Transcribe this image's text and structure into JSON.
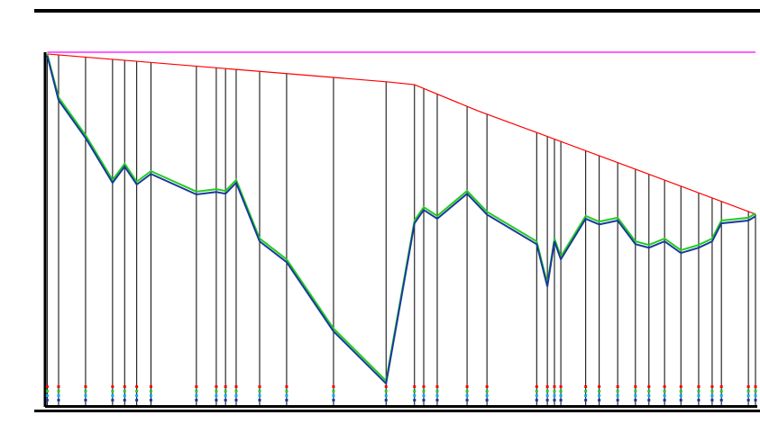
{
  "chart_data": {
    "type": "line",
    "xlim": [
      0,
      100
    ],
    "ylim": [
      0,
      100
    ],
    "series": [
      {
        "color": "#ff00ff",
        "x": [
          0.3,
          100
        ],
        "values": [
          100,
          100
        ]
      },
      {
        "color": "#ff0000",
        "x": [
          0.3,
          48.2,
          52.0,
          60.9,
          69.8,
          82.5,
          100
        ],
        "values": [
          99.5,
          91.6,
          90.8,
          83.4,
          76.8,
          67.3,
          54.1
        ]
      },
      {
        "color": "#22cc22",
        "x": [
          0.3,
          1.9,
          5.7,
          9.5,
          11.2,
          12.9,
          14.9,
          21.3,
          24.1,
          25.4,
          26.9,
          30.2,
          34.0,
          40.6,
          48.0,
          52.0,
          53.3,
          55.2,
          59.4,
          62.2,
          69.2,
          70.7,
          71.7,
          72.6,
          76.1,
          78.0,
          80.6,
          83.1,
          85.0,
          87.2,
          89.5,
          92.0,
          93.9,
          95.2,
          99.0,
          100
        ],
        "values": [
          99.5,
          87.2,
          76.5,
          63.8,
          68.4,
          63.3,
          66.3,
          60.5,
          61.2,
          60.7,
          63.8,
          47.2,
          41.3,
          21.7,
          6.9,
          52.3,
          56.1,
          53.6,
          60.7,
          54.8,
          46.4,
          34.4,
          47.2,
          42.1,
          53.6,
          52.0,
          53.1,
          46.4,
          45.4,
          47.2,
          43.9,
          45.4,
          47.2,
          52.3,
          53.1,
          54.3
        ]
      },
      {
        "color": "#1a3a9a",
        "x": [
          0.3,
          1.9,
          5.7,
          9.5,
          11.2,
          12.9,
          14.9,
          21.3,
          24.1,
          25.4,
          26.9,
          30.2,
          34.0,
          40.6,
          48.0,
          52.0,
          53.3,
          55.2,
          59.4,
          62.2,
          69.2,
          70.7,
          71.7,
          72.6,
          76.1,
          78.0,
          80.6,
          83.1,
          85.0,
          87.2,
          89.5,
          92.0,
          93.9,
          95.2,
          99.0,
          100
        ],
        "values": [
          99.0,
          86.4,
          75.7,
          63.0,
          67.6,
          62.5,
          65.5,
          59.7,
          60.4,
          59.9,
          63.0,
          46.4,
          40.5,
          20.9,
          6.1,
          51.5,
          55.3,
          52.8,
          59.9,
          54.0,
          45.6,
          33.6,
          46.4,
          41.3,
          52.8,
          51.2,
          52.3,
          45.6,
          44.6,
          46.4,
          43.1,
          44.6,
          46.4,
          51.5,
          52.3,
          53.5
        ]
      }
    ]
  }
}
